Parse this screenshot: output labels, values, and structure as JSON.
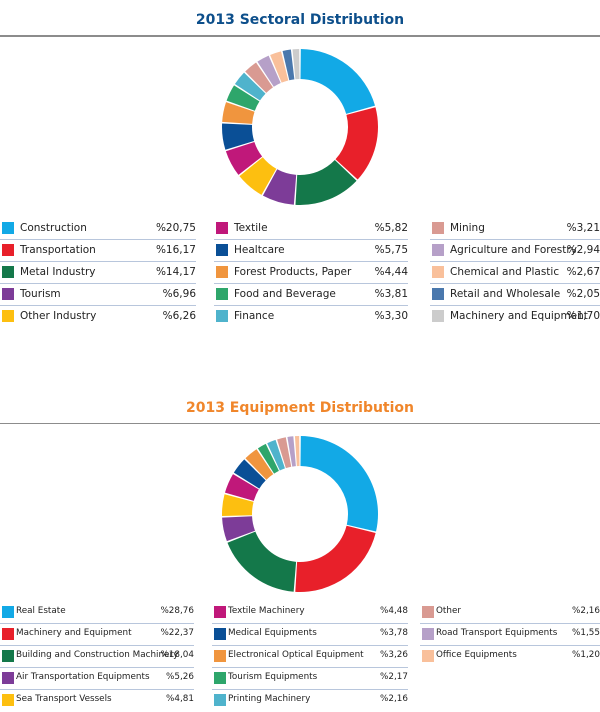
{
  "chart_data": [
    {
      "type": "pie",
      "title": "2013 Sectoral Distribution",
      "title_color": "#0d4f8b",
      "series": [
        {
          "name": "Construction",
          "value_label": "%20,75",
          "value": 20.75,
          "color": "#12a9e6"
        },
        {
          "name": "Transportation",
          "value_label": "%16,17",
          "value": 16.17,
          "color": "#e8202a"
        },
        {
          "name": "Metal Industry",
          "value_label": "%14,17",
          "value": 14.17,
          "color": "#14784a"
        },
        {
          "name": "Tourism",
          "value_label": "%6,96",
          "value": 6.96,
          "color": "#7d3c98"
        },
        {
          "name": "Other Industry",
          "value_label": "%6,26",
          "value": 6.26,
          "color": "#fdbf10"
        },
        {
          "name": "Textile",
          "value_label": "%5,82",
          "value": 5.82,
          "color": "#c0187a"
        },
        {
          "name": "Healtcare",
          "value_label": "%5,75",
          "value": 5.75,
          "color": "#0a4f96"
        },
        {
          "name": "Forest Products, Paper",
          "value_label": "%4,44",
          "value": 4.44,
          "color": "#f0953e"
        },
        {
          "name": "Food and Beverage",
          "value_label": "%3,81",
          "value": 3.81,
          "color": "#2ea66b"
        },
        {
          "name": "Finance",
          "value_label": "%3,30",
          "value": 3.3,
          "color": "#4fb3cc"
        },
        {
          "name": "Mining",
          "value_label": "%3,21",
          "value": 3.21,
          "color": "#d99a92"
        },
        {
          "name": "Agriculture and Forestry",
          "value_label": "%2,94",
          "value": 2.94,
          "color": "#b6a0c8"
        },
        {
          "name": "Chemical and Plastic",
          "value_label": "%2,67",
          "value": 2.67,
          "color": "#f9c09b"
        },
        {
          "name": "Retail and Wholesale",
          "value_label": "%2,05",
          "value": 2.05,
          "color": "#4a78ad"
        },
        {
          "name": "Machinery and Equipment",
          "value_label": "%1,70",
          "value": 1.7,
          "color": "#cccccc"
        }
      ]
    },
    {
      "type": "pie",
      "title": "2013 Equipment  Distribution",
      "title_color": "#f0862b",
      "series": [
        {
          "name": "Real Estate",
          "value_label": "%28,76",
          "value": 28.76,
          "color": "#12a9e6"
        },
        {
          "name": "Machinery and Equipment",
          "value_label": "%22,37",
          "value": 22.37,
          "color": "#e8202a"
        },
        {
          "name": "Building and Construction Machinery",
          "value_label": "%18,04",
          "value": 18.04,
          "color": "#14784a"
        },
        {
          "name": "Air Transportation Equipments",
          "value_label": "%5,26",
          "value": 5.26,
          "color": "#7d3c98"
        },
        {
          "name": "Sea Transport Vessels",
          "value_label": "%4,81",
          "value": 4.81,
          "color": "#fdbf10"
        },
        {
          "name": "Textile Machinery",
          "value_label": "%4,48",
          "value": 4.48,
          "color": "#c0187a"
        },
        {
          "name": "Medical Equipments",
          "value_label": "%3,78",
          "value": 3.78,
          "color": "#0a4f96"
        },
        {
          "name": "Electronical Optical Equipment",
          "value_label": "%3,26",
          "value": 3.26,
          "color": "#f0953e"
        },
        {
          "name": "Tourism Equipments",
          "value_label": "%2,17",
          "value": 2.17,
          "color": "#2ea66b"
        },
        {
          "name": "Printing Machinery",
          "value_label": "%2,16",
          "value": 2.16,
          "color": "#4fb3cc"
        },
        {
          "name": "Other",
          "value_label": "%2,16",
          "value": 2.16,
          "color": "#d99a92"
        },
        {
          "name": "Road Transport Equipments",
          "value_label": "%1,55",
          "value": 1.55,
          "color": "#b6a0c8"
        },
        {
          "name": "Office Equipments",
          "value_label": "%1,20",
          "value": 1.2,
          "color": "#f9c09b"
        }
      ]
    }
  ]
}
